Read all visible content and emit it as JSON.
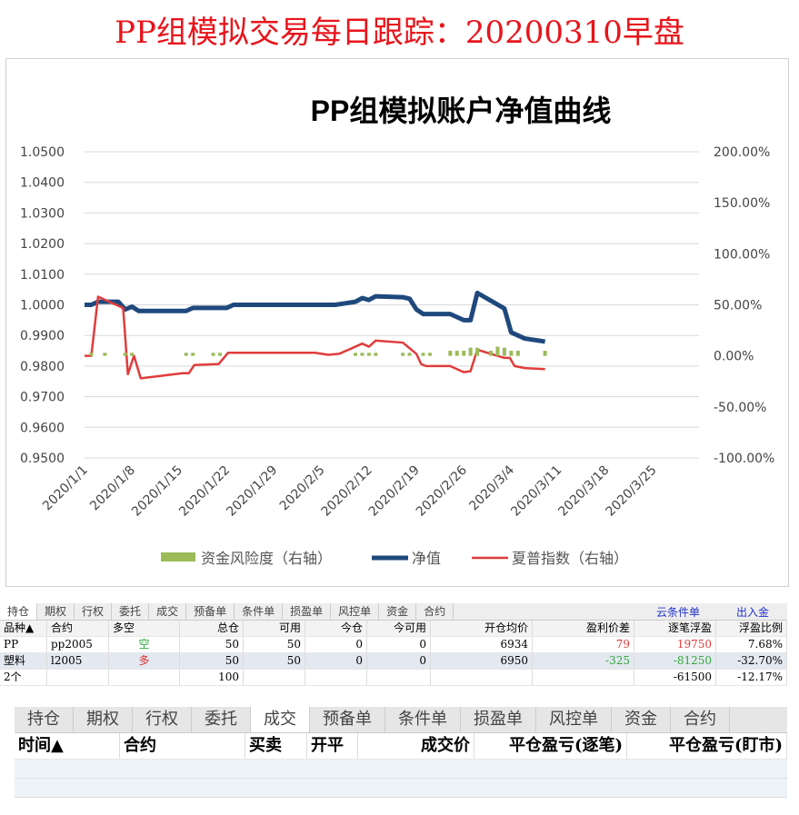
{
  "title": "PP组模拟交易每日跟踪：20200310早盘",
  "chart_data": {
    "type": "line",
    "title": "PP组模拟账户净值曲线",
    "x_unit": "days since 2020/1/1",
    "xticks": [
      "2020/1/1",
      "2020/1/8",
      "2020/1/15",
      "2020/1/22",
      "2020/1/29",
      "2020/2/5",
      "2020/2/12",
      "2020/2/19",
      "2020/2/26",
      "2020/3/4",
      "2020/3/11",
      "2020/3/18",
      "2020/3/25"
    ],
    "yleft": {
      "ticks": [
        "1.0500",
        "1.0400",
        "1.0300",
        "1.0200",
        "1.0100",
        "1.0000",
        "0.9900",
        "0.9800",
        "0.9700",
        "0.9600",
        "0.9500"
      ],
      "range": [
        0.95,
        1.05
      ]
    },
    "yright": {
      "ticks": [
        "200.00%",
        "150.00%",
        "100.00%",
        "50.00%",
        "0.00%",
        "-50.00%",
        "-100.00%"
      ],
      "range": [
        -100,
        200
      ]
    },
    "legend": [
      "资金风险度（右轴）",
      "净值",
      "夏普指数（右轴）"
    ],
    "legend_position": "bottom",
    "series": [
      {
        "name": "净值",
        "axis": "left",
        "color": "#1f497d",
        "points": [
          [
            0,
            1.0
          ],
          [
            1,
            1.0
          ],
          [
            2,
            1.001
          ],
          [
            5,
            1.001
          ],
          [
            6,
            0.9985
          ],
          [
            7,
            0.9994
          ],
          [
            8,
            0.998
          ],
          [
            15,
            0.998
          ],
          [
            16,
            0.999
          ],
          [
            21,
            0.999
          ],
          [
            22,
            1.0
          ],
          [
            37,
            1.0
          ],
          [
            40,
            1.001
          ],
          [
            41,
            1.0022
          ],
          [
            42,
            1.0016
          ],
          [
            43,
            1.0028
          ],
          [
            47,
            1.0025
          ],
          [
            48,
            1.002
          ],
          [
            49,
            0.9985
          ],
          [
            50,
            0.997
          ],
          [
            54,
            0.997
          ],
          [
            55,
            0.996
          ],
          [
            56,
            0.995
          ],
          [
            57,
            0.995
          ],
          [
            58,
            1.0039
          ],
          [
            62,
            0.9988
          ],
          [
            63,
            0.991
          ],
          [
            65,
            0.989
          ],
          [
            68,
            0.988
          ]
        ]
      },
      {
        "name": "夏普指数（右轴）",
        "axis": "right",
        "color": "#e03c3c",
        "points": [
          [
            0,
            0
          ],
          [
            1,
            0
          ],
          [
            2,
            58
          ],
          [
            5,
            49
          ],
          [
            5.7,
            47
          ],
          [
            6.4,
            -18
          ],
          [
            7.3,
            0
          ],
          [
            8.3,
            -22
          ],
          [
            14.5,
            -17
          ],
          [
            15.4,
            -17
          ],
          [
            16.2,
            -9
          ],
          [
            19.8,
            -8
          ],
          [
            21.2,
            3
          ],
          [
            34,
            3
          ],
          [
            36,
            1
          ],
          [
            37.6,
            2
          ],
          [
            40,
            9
          ],
          [
            41,
            12
          ],
          [
            42,
            9
          ],
          [
            43,
            15
          ],
          [
            47,
            13
          ],
          [
            49,
            2
          ],
          [
            49.7,
            -8
          ],
          [
            50.4,
            -10
          ],
          [
            54,
            -10
          ],
          [
            56,
            -16
          ],
          [
            57,
            -15
          ],
          [
            58,
            6
          ],
          [
            62,
            -2
          ],
          [
            62.8,
            -2
          ],
          [
            63.5,
            -10
          ],
          [
            65,
            -12
          ],
          [
            68,
            -13
          ]
        ]
      },
      {
        "name": "资金风险度（右轴）",
        "axis": "right",
        "color": "#9bbb59",
        "type": "bar",
        "points": [
          [
            1,
            3
          ],
          [
            3,
            3
          ],
          [
            6,
            3
          ],
          [
            7,
            3
          ],
          [
            15,
            3
          ],
          [
            16,
            3
          ],
          [
            19,
            3
          ],
          [
            20,
            3
          ],
          [
            40,
            3
          ],
          [
            41,
            3
          ],
          [
            42,
            3
          ],
          [
            43,
            3
          ],
          [
            47,
            3
          ],
          [
            48,
            3
          ],
          [
            50,
            3
          ],
          [
            51,
            3
          ],
          [
            54,
            5
          ],
          [
            55,
            5
          ],
          [
            56,
            5
          ],
          [
            57,
            8
          ],
          [
            58,
            8
          ],
          [
            60,
            5
          ],
          [
            61,
            9
          ],
          [
            62,
            8
          ],
          [
            63,
            5
          ],
          [
            64,
            5
          ],
          [
            68,
            5
          ]
        ]
      }
    ]
  },
  "table1": {
    "tabs": [
      "持仓",
      "期权",
      "行权",
      "委托",
      "成交",
      "预备单",
      "条件单",
      "损盈单",
      "风控单",
      "资金",
      "合约"
    ],
    "links": [
      "云条件单",
      "出入金"
    ],
    "headers": [
      "品种▲",
      "合约",
      "多空",
      "总仓",
      "可用",
      "今仓",
      "今可用",
      "开仓均价",
      "盈利价差",
      "逐笔浮盈",
      "浮盈比例"
    ],
    "rows": [
      [
        "PP",
        "pp2005",
        "空",
        "50",
        "50",
        "0",
        "0",
        "6934",
        "79",
        "19750",
        "7.68%"
      ],
      [
        "塑料",
        "l2005",
        "多",
        "50",
        "50",
        "0",
        "0",
        "6950",
        "-325",
        "-81250",
        "-32.70%"
      ],
      [
        "2个",
        "",
        "",
        "100",
        "",
        "",
        "",
        "",
        "",
        "-61500",
        "-12.17%"
      ]
    ]
  },
  "table2": {
    "tabs": [
      "持仓",
      "期权",
      "行权",
      "委托",
      "成交",
      "预备单",
      "条件单",
      "损盈单",
      "风控单",
      "资金",
      "合约"
    ],
    "headers": [
      "时间▲",
      "合约",
      "买卖",
      "开平",
      "成交价",
      "平仓盈亏(逐笔)",
      "平仓盈亏(盯市)"
    ]
  }
}
